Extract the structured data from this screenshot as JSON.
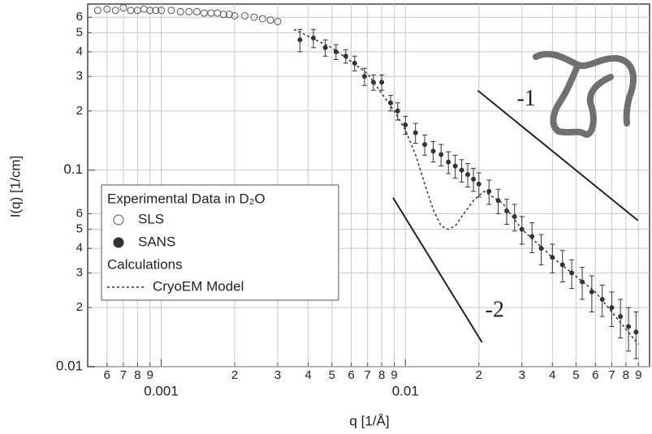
{
  "chart_data": {
    "type": "scatter",
    "x_label": "q [1/Å]",
    "y_label": "I(q) [1/cm]",
    "log_x": true,
    "log_y": true,
    "grid": true,
    "xlim": [
      0.0005,
      0.1
    ],
    "ylim": [
      0.01,
      0.7
    ],
    "xticks": [
      {
        "value": 0.0006,
        "label": "6"
      },
      {
        "value": 0.0007,
        "label": "7"
      },
      {
        "value": 0.0008,
        "label": "8"
      },
      {
        "value": 0.0009,
        "label": "9"
      },
      0.001,
      {
        "value": 0.002,
        "label": "2"
      },
      {
        "value": 0.003,
        "label": "3"
      },
      {
        "value": 0.004,
        "label": "4"
      },
      {
        "value": 0.005,
        "label": "5"
      },
      {
        "value": 0.006,
        "label": "6"
      },
      {
        "value": 0.007,
        "label": "7"
      },
      {
        "value": 0.008,
        "label": "8"
      },
      {
        "value": 0.009,
        "label": "9"
      },
      0.01,
      {
        "value": 0.02,
        "label": "2"
      },
      {
        "value": 0.03,
        "label": "3"
      },
      {
        "value": 0.04,
        "label": "4"
      },
      {
        "value": 0.05,
        "label": "5"
      },
      {
        "value": 0.06,
        "label": "6"
      },
      {
        "value": 0.07,
        "label": "7"
      },
      {
        "value": 0.08,
        "label": "8"
      },
      {
        "value": 0.09,
        "label": "9"
      }
    ],
    "yticks": [
      0.01,
      {
        "value": 0.02,
        "label": "2"
      },
      {
        "value": 0.03,
        "label": "3"
      },
      {
        "value": 0.04,
        "label": "4"
      },
      {
        "value": 0.05,
        "label": "5"
      },
      {
        "value": 0.06,
        "label": "6"
      },
      0.1,
      {
        "value": 0.2,
        "label": "2"
      },
      {
        "value": 0.3,
        "label": "3"
      },
      {
        "value": 0.4,
        "label": "4"
      },
      {
        "value": 0.5,
        "label": "5"
      },
      {
        "value": 0.6,
        "label": "6"
      }
    ],
    "legend_title": "Experimental Data in D₂O",
    "legend_group": "Calculations",
    "series": [
      {
        "name": "SLS",
        "marker": "open-circle",
        "color": "#555555",
        "x": [
          0.00055,
          0.0006,
          0.00065,
          0.0007,
          0.00075,
          0.0008,
          0.00085,
          0.0009,
          0.00095,
          0.001,
          0.0011,
          0.0012,
          0.0013,
          0.0014,
          0.0015,
          0.0016,
          0.0017,
          0.0018,
          0.0019,
          0.002,
          0.0022,
          0.0024,
          0.0026,
          0.0028,
          0.003
        ],
        "values": [
          0.65,
          0.66,
          0.65,
          0.67,
          0.65,
          0.65,
          0.66,
          0.65,
          0.65,
          0.65,
          0.65,
          0.64,
          0.64,
          0.64,
          0.63,
          0.63,
          0.63,
          0.62,
          0.62,
          0.61,
          0.61,
          0.6,
          0.59,
          0.58,
          0.57
        ]
      },
      {
        "name": "SANS",
        "marker": "filled-circle",
        "color": "#333333",
        "x": [
          0.0037,
          0.0042,
          0.0047,
          0.0052,
          0.0057,
          0.0062,
          0.0068,
          0.0074,
          0.008,
          0.0087,
          0.0093,
          0.01,
          0.011,
          0.012,
          0.013,
          0.014,
          0.015,
          0.016,
          0.017,
          0.018,
          0.019,
          0.02,
          0.022,
          0.024,
          0.026,
          0.028,
          0.03,
          0.033,
          0.036,
          0.04,
          0.044,
          0.048,
          0.053,
          0.058,
          0.064,
          0.07,
          0.076,
          0.082,
          0.088
        ],
        "values": [
          0.46,
          0.47,
          0.42,
          0.4,
          0.38,
          0.35,
          0.3,
          0.28,
          0.28,
          0.22,
          0.2,
          0.17,
          0.155,
          0.135,
          0.125,
          0.12,
          0.11,
          0.105,
          0.1,
          0.095,
          0.09,
          0.085,
          0.078,
          0.07,
          0.062,
          0.058,
          0.05,
          0.046,
          0.04,
          0.036,
          0.033,
          0.03,
          0.027,
          0.024,
          0.022,
          0.02,
          0.018,
          0.016,
          0.015
        ],
        "errors": [
          0.06,
          0.05,
          0.04,
          0.035,
          0.03,
          0.03,
          0.03,
          0.025,
          0.025,
          0.02,
          0.02,
          0.018,
          0.018,
          0.016,
          0.015,
          0.015,
          0.014,
          0.014,
          0.013,
          0.013,
          0.012,
          0.012,
          0.011,
          0.01,
          0.009,
          0.009,
          0.008,
          0.008,
          0.007,
          0.006,
          0.006,
          0.005,
          0.005,
          0.005,
          0.004,
          0.004,
          0.004,
          0.004,
          0.004
        ]
      },
      {
        "name": "CryoEM Model",
        "marker": "dotted-line",
        "color": "#333333",
        "x": [
          0.0035,
          0.005,
          0.007,
          0.009,
          0.01,
          0.011,
          0.012,
          0.013,
          0.014,
          0.015,
          0.016,
          0.017,
          0.019,
          0.021,
          0.025,
          0.03,
          0.04,
          0.06,
          0.09
        ],
        "values": [
          0.52,
          0.42,
          0.31,
          0.2,
          0.16,
          0.12,
          0.085,
          0.063,
          0.052,
          0.05,
          0.052,
          0.058,
          0.07,
          0.078,
          0.068,
          0.05,
          0.036,
          0.024,
          0.013
        ]
      }
    ],
    "guides": [
      {
        "label": "-1",
        "x": [
          0.0198,
          0.0897
        ],
        "y": [
          0.254,
          0.0554
        ]
      },
      {
        "label": "-2",
        "x": [
          0.0089,
          0.0206
        ],
        "y": [
          0.0724,
          0.0133
        ]
      }
    ]
  }
}
